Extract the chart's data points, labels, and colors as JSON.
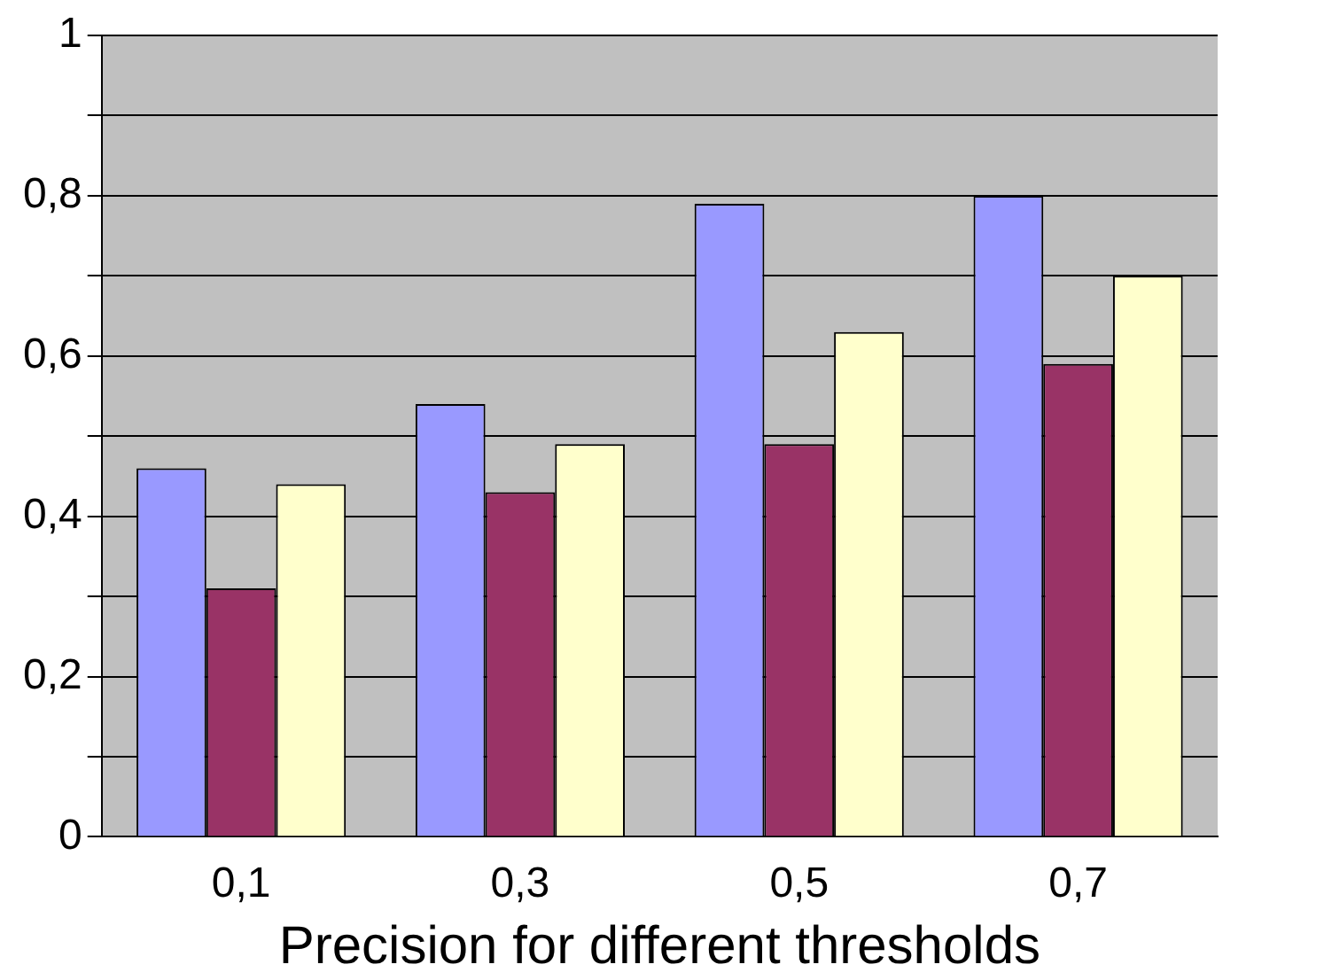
{
  "chart_data": {
    "type": "bar",
    "xlabel": "Precision for different thresholds",
    "categories": [
      "0,1",
      "0,3",
      "0,5",
      "0,7"
    ],
    "series": [
      {
        "color": "#9999ff",
        "values": [
          0.46,
          0.54,
          0.79,
          0.8
        ]
      },
      {
        "color": "#993366",
        "values": [
          0.31,
          0.43,
          0.49,
          0.59
        ]
      },
      {
        "color": "#ffffcc",
        "values": [
          0.44,
          0.49,
          0.63,
          0.7
        ]
      }
    ],
    "ylim": [
      0,
      1
    ],
    "yticks": [
      0,
      {
        "value": 0.1,
        "label": null
      },
      {
        "value": 0.2,
        "label": "0,2"
      },
      {
        "value": 0.3,
        "label": null
      },
      {
        "value": 0.4,
        "label": "0,4"
      },
      {
        "value": 0.5,
        "label": null
      },
      {
        "value": 0.6,
        "label": "0,6"
      },
      {
        "value": 0.7,
        "label": null
      },
      {
        "value": 0.8,
        "label": "0,8"
      },
      {
        "value": 0.9,
        "label": null
      },
      1
    ],
    "grid": "y",
    "legend": false
  }
}
